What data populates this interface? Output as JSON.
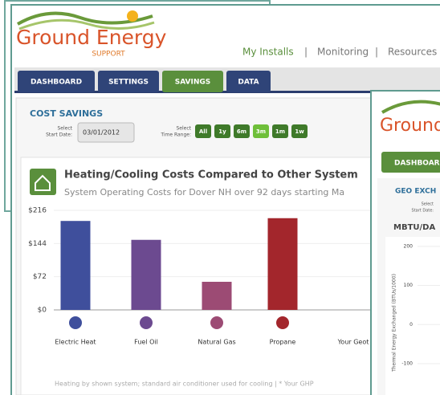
{
  "header": {
    "logo": "Ground Energy",
    "logo_sub": "SUPPORT",
    "nav": [
      "My Installs",
      "Monitoring",
      "Resources"
    ],
    "separator": "|"
  },
  "tabs": [
    "DASHBOARD",
    "SETTINGS",
    "SAVINGS",
    "DATA"
  ],
  "section": {
    "title": "COST SAVINGS",
    "start_label": [
      "Select",
      "Start Date:"
    ],
    "start_date": "03/01/2012",
    "range_label": [
      "Select",
      "Time Range:"
    ],
    "ranges": [
      "All",
      "1y",
      "6m",
      "3m",
      "1m",
      "1w"
    ]
  },
  "chart_data": {
    "type": "bar",
    "title": "Heating/Cooling Costs Compared to Other System",
    "subtitle": "System Operating Costs for Dover NH over 92 days starting Ma",
    "categories": [
      "Electric Heat",
      "Fuel Oil",
      "Natural Gas",
      "Propane",
      "Your Geot"
    ],
    "values": [
      193,
      152,
      61,
      199,
      null
    ],
    "colors": [
      "#3f4f9c",
      "#6c4a90",
      "#9c4b74",
      "#a3262c",
      "#888888"
    ],
    "ylim": [
      0,
      216
    ],
    "yticks": [
      {
        "value": 0,
        "label": "$0"
      },
      {
        "value": 72,
        "label": "$72"
      },
      {
        "value": 144,
        "label": "$144"
      },
      {
        "value": 216,
        "label": "$216"
      }
    ],
    "grid": true,
    "footnote": "Heating by shown system; standard air conditioner used for cooling | * Your GHP"
  },
  "overlay": {
    "logo": "Ground",
    "tab": "DASHBOARD",
    "section": "GEO EXCH",
    "start_label": [
      "Select",
      "Start Date:"
    ],
    "chart_title": "MBTU/DA",
    "ylabel": "Thermal Energy Exchanged (BTUs/1000)",
    "ylim": [
      -180,
      214
    ],
    "yticks": [
      200,
      100,
      0,
      -100
    ]
  }
}
